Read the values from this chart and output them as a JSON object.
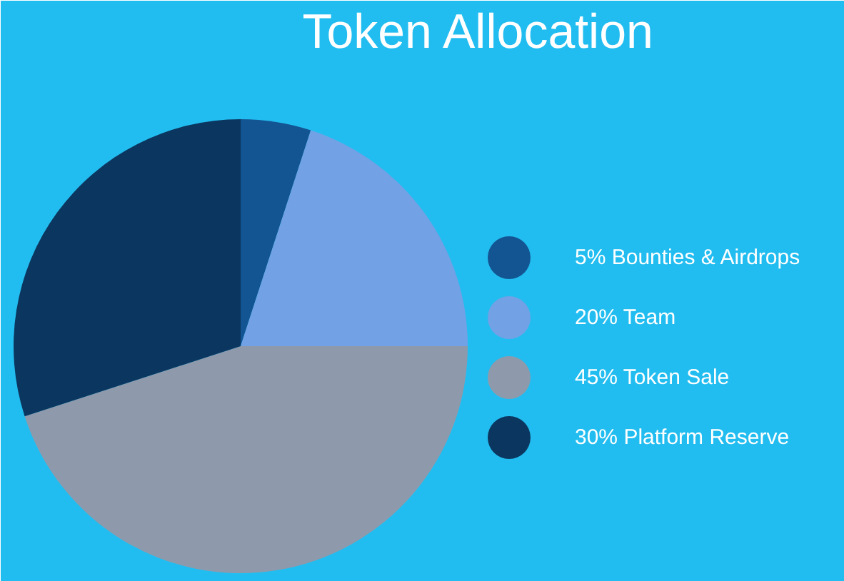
{
  "chart_data": {
    "type": "pie",
    "title": "Token Allocation",
    "categories": [
      "5% Bounties & Airdrops",
      "20% Team",
      "45% Token Sale",
      "30% Platform Reserve"
    ],
    "values": [
      5,
      20,
      45,
      30
    ],
    "colors": [
      "#135592",
      "#72a1e5",
      "#8e9aac",
      "#0b365f"
    ],
    "legend": "right"
  }
}
